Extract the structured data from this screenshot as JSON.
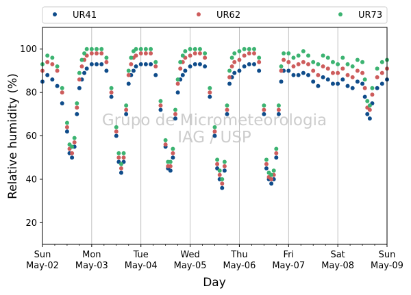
{
  "chart_data": {
    "type": "scatter",
    "xlabel": "Day",
    "ylabel": "Relative humidity (%)",
    "xlim": [
      0,
      7
    ],
    "ylim": [
      10,
      110
    ],
    "yticks": [
      20,
      40,
      60,
      80,
      100
    ],
    "x_tick_labels": [
      {
        "day": "Sun",
        "date": "May-02"
      },
      {
        "day": "Mon",
        "date": "May-03"
      },
      {
        "day": "Tue",
        "date": "May-04"
      },
      {
        "day": "Wed",
        "date": "May-05"
      },
      {
        "day": "Thu",
        "date": "May-06"
      },
      {
        "day": "Fri",
        "date": "May-07"
      },
      {
        "day": "Sat",
        "date": "May-08"
      },
      {
        "day": "Sun",
        "date": "May-09"
      }
    ],
    "x_unit": "days since Sun May-02 00:00",
    "grid": "vertical at major x ticks",
    "legend_position": "top, above plot",
    "watermark": [
      "Grupo de Micrometeorologia",
      "IAG / USP"
    ],
    "series": [
      {
        "name": "UR41",
        "color": "#0f4c8a",
        "x": [
          0.0,
          0.1,
          0.2,
          0.3,
          0.4,
          0.5,
          0.55,
          0.6,
          0.65,
          0.7,
          0.75,
          0.8,
          0.85,
          0.9,
          1.0,
          1.1,
          1.2,
          1.3,
          1.4,
          1.5,
          1.55,
          1.6,
          1.65,
          1.7,
          1.75,
          1.8,
          1.85,
          1.9,
          2.0,
          2.1,
          2.2,
          2.3,
          2.4,
          2.5,
          2.55,
          2.6,
          2.65,
          2.7,
          2.75,
          2.8,
          2.85,
          2.9,
          3.0,
          3.1,
          3.2,
          3.3,
          3.4,
          3.5,
          3.55,
          3.6,
          3.65,
          3.7,
          3.75,
          3.8,
          3.85,
          3.9,
          4.0,
          4.1,
          4.2,
          4.3,
          4.4,
          4.5,
          4.55,
          4.6,
          4.65,
          4.7,
          4.75,
          4.8,
          4.85,
          4.9,
          5.0,
          5.1,
          5.2,
          5.3,
          5.4,
          5.5,
          5.6,
          5.7,
          5.8,
          5.9,
          6.0,
          6.1,
          6.2,
          6.3,
          6.4,
          6.5,
          6.55,
          6.6,
          6.65,
          6.7,
          6.8,
          6.9,
          7.0
        ],
        "y": [
          85,
          88,
          86,
          83,
          75,
          62,
          52,
          50,
          55,
          70,
          82,
          86,
          89,
          91,
          93,
          93,
          93,
          90,
          78,
          60,
          48,
          43,
          48,
          70,
          84,
          88,
          90,
          92,
          93,
          93,
          93,
          88,
          72,
          55,
          45,
          44,
          50,
          68,
          80,
          86,
          88,
          90,
          92,
          93,
          93,
          92,
          78,
          60,
          45,
          40,
          36,
          44,
          70,
          84,
          87,
          89,
          90,
          92,
          93,
          93,
          90,
          70,
          45,
          40,
          38,
          40,
          50,
          70,
          85,
          90,
          90,
          88,
          88,
          89,
          88,
          85,
          83,
          87,
          86,
          84,
          84,
          86,
          83,
          82,
          85,
          84,
          78,
          70,
          68,
          75,
          82,
          84,
          86
        ]
      },
      {
        "name": "UR62",
        "color": "#cd5c5c",
        "x": [
          0.0,
          0.1,
          0.2,
          0.3,
          0.4,
          0.5,
          0.55,
          0.6,
          0.65,
          0.7,
          0.75,
          0.8,
          0.85,
          0.9,
          1.0,
          1.1,
          1.2,
          1.3,
          1.4,
          1.5,
          1.55,
          1.6,
          1.65,
          1.7,
          1.75,
          1.8,
          1.85,
          1.9,
          2.0,
          2.1,
          2.2,
          2.3,
          2.4,
          2.5,
          2.55,
          2.6,
          2.65,
          2.7,
          2.75,
          2.8,
          2.85,
          2.9,
          3.0,
          3.1,
          3.2,
          3.3,
          3.4,
          3.5,
          3.55,
          3.6,
          3.65,
          3.7,
          3.75,
          3.8,
          3.85,
          3.9,
          4.0,
          4.1,
          4.2,
          4.3,
          4.4,
          4.5,
          4.55,
          4.6,
          4.65,
          4.7,
          4.75,
          4.8,
          4.85,
          4.9,
          5.0,
          5.1,
          5.2,
          5.3,
          5.4,
          5.5,
          5.6,
          5.7,
          5.8,
          5.9,
          6.0,
          6.1,
          6.2,
          6.3,
          6.4,
          6.5,
          6.55,
          6.6,
          6.65,
          6.7,
          6.8,
          6.9,
          7.0
        ],
        "y": [
          90,
          94,
          93,
          90,
          80,
          64,
          54,
          52,
          57,
          73,
          86,
          92,
          95,
          97,
          98,
          98,
          98,
          94,
          80,
          62,
          50,
          45,
          50,
          72,
          88,
          93,
          96,
          97,
          98,
          98,
          98,
          92,
          74,
          56,
          46,
          46,
          52,
          70,
          84,
          91,
          94,
          96,
          97,
          98,
          98,
          96,
          80,
          62,
          47,
          42,
          38,
          46,
          72,
          87,
          92,
          94,
          95,
          97,
          98,
          98,
          94,
          72,
          47,
          41,
          40,
          42,
          52,
          72,
          90,
          95,
          94,
          92,
          93,
          94,
          93,
          90,
          88,
          92,
          91,
          89,
          89,
          91,
          88,
          87,
          90,
          89,
          82,
          73,
          72,
          79,
          87,
          89,
          91
        ]
      },
      {
        "name": "UR73",
        "color": "#3cb371",
        "x": [
          0.0,
          0.1,
          0.2,
          0.3,
          0.4,
          0.5,
          0.55,
          0.6,
          0.65,
          0.7,
          0.75,
          0.8,
          0.85,
          0.9,
          1.0,
          1.1,
          1.2,
          1.3,
          1.4,
          1.5,
          1.55,
          1.6,
          1.65,
          1.7,
          1.75,
          1.8,
          1.85,
          1.9,
          2.0,
          2.1,
          2.2,
          2.3,
          2.4,
          2.5,
          2.55,
          2.6,
          2.65,
          2.7,
          2.75,
          2.8,
          2.85,
          2.9,
          3.0,
          3.1,
          3.2,
          3.3,
          3.4,
          3.5,
          3.55,
          3.6,
          3.65,
          3.7,
          3.75,
          3.8,
          3.85,
          3.9,
          4.0,
          4.1,
          4.2,
          4.3,
          4.4,
          4.5,
          4.55,
          4.6,
          4.65,
          4.7,
          4.75,
          4.8,
          4.85,
          4.9,
          5.0,
          5.1,
          5.2,
          5.3,
          5.4,
          5.5,
          5.6,
          5.7,
          5.8,
          5.9,
          6.0,
          6.1,
          6.2,
          6.3,
          6.4,
          6.5,
          6.55,
          6.6,
          6.65,
          6.7,
          6.8,
          6.9,
          7.0
        ],
        "y": [
          93,
          97,
          96,
          92,
          82,
          66,
          56,
          55,
          59,
          75,
          89,
          95,
          98,
          100,
          100,
          100,
          100,
          96,
          82,
          64,
          52,
          47,
          52,
          74,
          90,
          96,
          99,
          100,
          100,
          100,
          100,
          94,
          76,
          58,
          48,
          48,
          54,
          72,
          86,
          94,
          97,
          99,
          100,
          100,
          100,
          98,
          82,
          64,
          49,
          44,
          40,
          48,
          74,
          90,
          96,
          98,
          99,
          100,
          100,
          100,
          96,
          74,
          49,
          43,
          42,
          44,
          54,
          74,
          92,
          98,
          98,
          96,
          97,
          99,
          97,
          94,
          93,
          97,
          96,
          94,
          93,
          96,
          93,
          92,
          95,
          94,
          86,
          76,
          74,
          82,
          91,
          94,
          95
        ]
      }
    ]
  }
}
